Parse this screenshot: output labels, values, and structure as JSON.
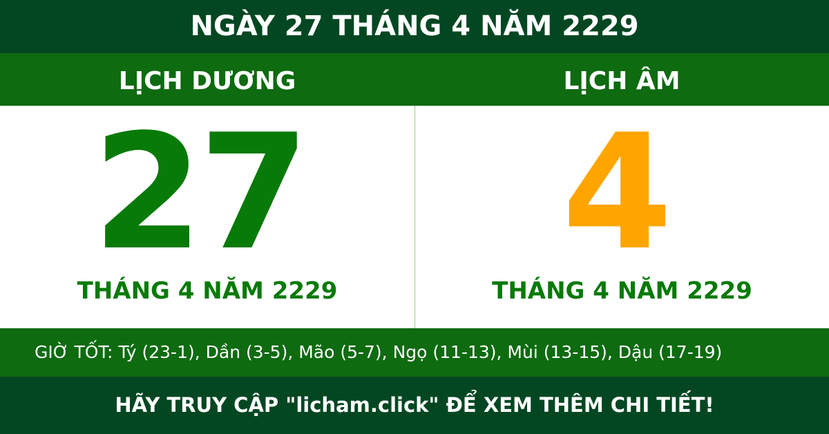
{
  "title": "NGÀY 27 THÁNG 4 NĂM 2229",
  "solar": {
    "label": "LỊCH DƯƠNG",
    "day": "27",
    "month_year": "THÁNG 4 NĂM 2229",
    "color": "#087a08"
  },
  "lunar": {
    "label": "LỊCH ÂM",
    "day": "4",
    "month_year": "THÁNG 4 NĂM 2229",
    "color": "#ffa500"
  },
  "good_hours": "GIỜ TỐT: Tý (23-1), Dần (3-5), Mão (5-7), Ngọ (11-13), Mùi (13-15), Dậu (17-19)",
  "footer": "HÃY TRUY CẬP \"licham.click\" ĐỂ XEM THÊM CHI TIẾT!"
}
